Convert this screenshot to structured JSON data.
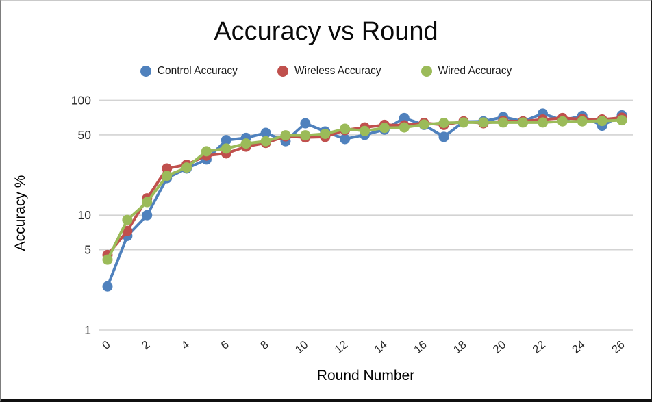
{
  "title": "Accuracy vs Round",
  "legend": {
    "items": [
      {
        "label": "Control Accuracy",
        "color": "#4F81BD"
      },
      {
        "label": "Wireless Accuracy",
        "color": "#C0504D"
      },
      {
        "label": "Wired Accuracy",
        "color": "#9BBB59"
      }
    ]
  },
  "axes": {
    "x_title": "Round Number",
    "y_title": "Accuracy %"
  },
  "chart_data": {
    "type": "line",
    "title": "Accuracy vs Round",
    "xlabel": "Round Number",
    "ylabel": "Accuracy %",
    "y_scale": "log10",
    "ylim": [
      1,
      100
    ],
    "xlim": [
      0,
      26
    ],
    "grid": "horizontal",
    "legend_position": "top",
    "y_ticks": [
      1,
      5,
      10,
      50,
      100
    ],
    "x_ticks": [
      0,
      2,
      4,
      6,
      8,
      10,
      12,
      14,
      16,
      18,
      20,
      22,
      24,
      26
    ],
    "x": [
      0,
      1,
      2,
      3,
      4,
      5,
      6,
      7,
      8,
      9,
      10,
      11,
      12,
      13,
      14,
      15,
      16,
      17,
      18,
      19,
      20,
      21,
      22,
      23,
      24,
      25,
      26
    ],
    "series": [
      {
        "name": "Control Accuracy",
        "id": "control",
        "color": "#4F81BD",
        "values": [
          2.4,
          6.6,
          10,
          21,
          25.5,
          30.5,
          45,
          47,
          52,
          44,
          63,
          53.5,
          46,
          50,
          55.5,
          70,
          61,
          48,
          65,
          65.5,
          71.5,
          65.5,
          76.5,
          67,
          73,
          60,
          74
        ]
      },
      {
        "name": "Wireless Accuracy",
        "id": "wireless",
        "color": "#C0504D",
        "values": [
          4.5,
          7.3,
          14,
          25.5,
          27.5,
          33,
          34.5,
          39.5,
          42.5,
          48.5,
          47.5,
          48,
          55,
          58,
          61,
          60.5,
          63.5,
          61,
          65.5,
          63,
          66,
          65.5,
          68,
          70,
          68.5,
          68,
          70.5
        ]
      },
      {
        "name": "Wired Accuracy",
        "id": "wired",
        "color": "#9BBB59",
        "values": [
          4.1,
          9.1,
          13,
          22,
          26,
          36,
          38,
          42,
          44,
          49.5,
          49.5,
          51,
          56.5,
          54,
          57.5,
          58,
          61.5,
          63.5,
          64,
          64,
          64,
          64,
          64,
          65.5,
          65.5,
          66,
          67
        ]
      }
    ]
  },
  "style": {
    "gridline_color": "#d3d3d3",
    "tick_label_color": "#262626",
    "background": "#ffffff"
  }
}
